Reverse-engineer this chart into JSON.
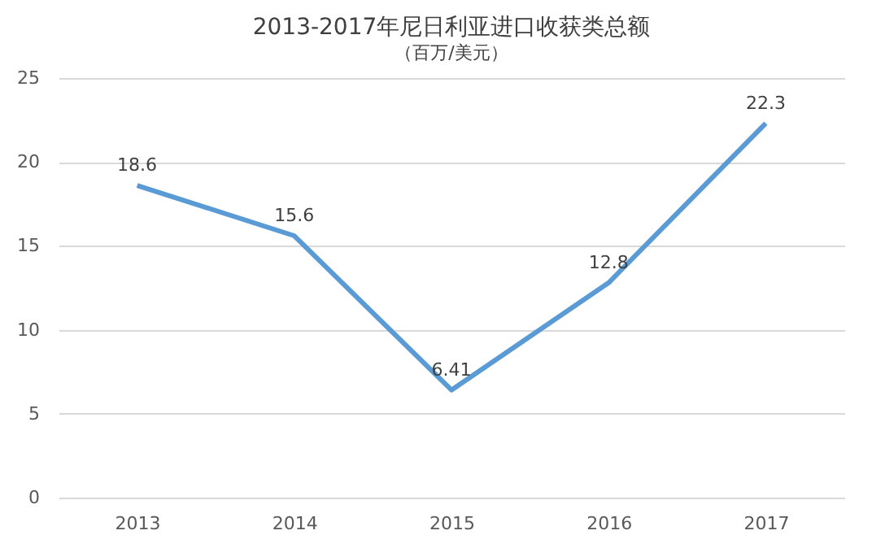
{
  "chart_data": {
    "type": "line",
    "title": "2013-2017年尼日利亚进口收获类总额",
    "subtitle": "（百万/美元）",
    "categories": [
      "2013",
      "2014",
      "2015",
      "2016",
      "2017"
    ],
    "series": [
      {
        "color": "#5b9bd5",
        "values": [
          18.6,
          15.6,
          6.41,
          12.8,
          22.3
        ]
      }
    ],
    "ylim": [
      0,
      25
    ],
    "yticks": [
      0,
      5,
      10,
      15,
      20,
      25
    ],
    "grid": "y",
    "data_labels": true,
    "marker": "none",
    "line_style": "solid"
  }
}
